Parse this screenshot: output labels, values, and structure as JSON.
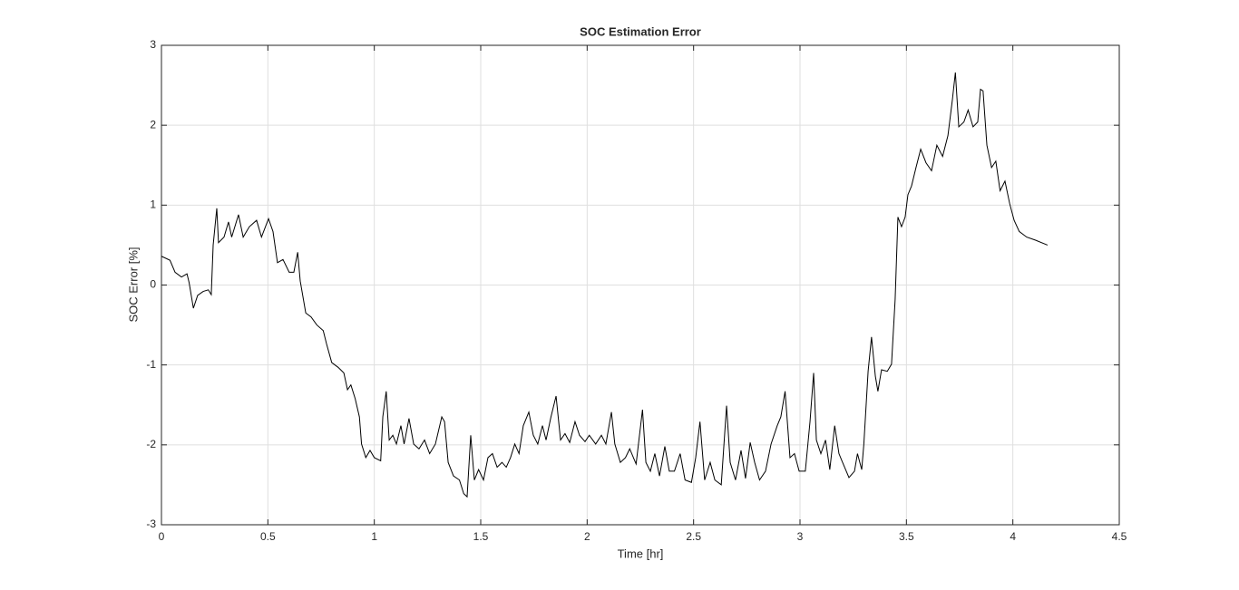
{
  "chart_data": {
    "type": "line",
    "title": "SOC Estimation Error",
    "x_label": "Time [hr]",
    "y_label": "SOC Error [%]",
    "xlim": [
      0,
      4.5
    ],
    "xticks": [
      0,
      0.5,
      1,
      1.5,
      2,
      2.5,
      3,
      3.5,
      4,
      4.5
    ],
    "ylim": [
      -3,
      3
    ],
    "yticks": [
      -3,
      -2,
      -1,
      0,
      1,
      2,
      3
    ],
    "grid": true,
    "series": [
      {
        "color": "#000000",
        "x": [
          0,
          0.04,
          0.064,
          0.094,
          0.12,
          0.13,
          0.15,
          0.17,
          0.196,
          0.22,
          0.234,
          0.243,
          0.26,
          0.268,
          0.294,
          0.315,
          0.33,
          0.362,
          0.384,
          0.413,
          0.447,
          0.47,
          0.503,
          0.524,
          0.545,
          0.571,
          0.6,
          0.622,
          0.64,
          0.652,
          0.678,
          0.703,
          0.73,
          0.76,
          0.776,
          0.8,
          0.83,
          0.857,
          0.874,
          0.89,
          0.91,
          0.93,
          0.94,
          0.96,
          0.98,
          1.0,
          1.03,
          1.04,
          1.056,
          1.07,
          1.087,
          1.104,
          1.125,
          1.14,
          1.163,
          1.185,
          1.21,
          1.236,
          1.26,
          1.287,
          1.317,
          1.33,
          1.347,
          1.372,
          1.4,
          1.42,
          1.436,
          1.453,
          1.47,
          1.49,
          1.513,
          1.534,
          1.555,
          1.577,
          1.6,
          1.62,
          1.64,
          1.66,
          1.68,
          1.7,
          1.726,
          1.747,
          1.768,
          1.79,
          1.807,
          1.83,
          1.854,
          1.875,
          1.896,
          1.918,
          1.943,
          1.964,
          1.99,
          2.01,
          2.04,
          2.067,
          2.088,
          2.114,
          2.13,
          2.156,
          2.18,
          2.2,
          2.23,
          2.26,
          2.276,
          2.297,
          2.318,
          2.34,
          2.365,
          2.386,
          2.41,
          2.437,
          2.46,
          2.49,
          2.51,
          2.53,
          2.552,
          2.578,
          2.6,
          2.63,
          2.655,
          2.672,
          2.697,
          2.723,
          2.744,
          2.766,
          2.787,
          2.81,
          2.838,
          2.864,
          2.893,
          2.91,
          2.93,
          2.953,
          2.974,
          2.996,
          3.025,
          3.047,
          3.064,
          3.077,
          3.098,
          3.12,
          3.14,
          3.163,
          3.183,
          3.2,
          3.23,
          3.256,
          3.27,
          3.29,
          3.3,
          3.32,
          3.336,
          3.354,
          3.366,
          3.383,
          3.41,
          3.43,
          3.447,
          3.46,
          3.477,
          3.494,
          3.507,
          3.524,
          3.545,
          3.567,
          3.592,
          3.618,
          3.643,
          3.67,
          3.695,
          3.716,
          3.73,
          3.746,
          3.77,
          3.79,
          3.813,
          3.835,
          3.848,
          3.86,
          3.878,
          3.9,
          3.92,
          3.94,
          3.963,
          3.985,
          4.006,
          4.03,
          4.065,
          4.108,
          4.163
        ],
        "values": [
          0.36,
          0.31,
          0.16,
          0.1,
          0.14,
          0.03,
          -0.29,
          -0.13,
          -0.08,
          -0.06,
          -0.12,
          0.5,
          0.96,
          0.53,
          0.6,
          0.79,
          0.6,
          0.88,
          0.6,
          0.73,
          0.81,
          0.6,
          0.83,
          0.67,
          0.28,
          0.32,
          0.16,
          0.16,
          0.41,
          0.05,
          -0.35,
          -0.4,
          -0.5,
          -0.57,
          -0.74,
          -0.97,
          -1.03,
          -1.1,
          -1.31,
          -1.25,
          -1.42,
          -1.65,
          -1.99,
          -2.16,
          -2.07,
          -2.16,
          -2.2,
          -1.65,
          -1.33,
          -1.94,
          -1.88,
          -1.99,
          -1.76,
          -1.99,
          -1.67,
          -1.99,
          -2.05,
          -1.94,
          -2.11,
          -1.99,
          -1.65,
          -1.71,
          -2.22,
          -2.39,
          -2.44,
          -2.61,
          -2.65,
          -1.88,
          -2.44,
          -2.31,
          -2.44,
          -2.16,
          -2.11,
          -2.28,
          -2.22,
          -2.28,
          -2.16,
          -1.99,
          -2.11,
          -1.76,
          -1.59,
          -1.88,
          -1.99,
          -1.76,
          -1.94,
          -1.65,
          -1.39,
          -1.94,
          -1.86,
          -1.97,
          -1.71,
          -1.88,
          -1.96,
          -1.88,
          -1.99,
          -1.88,
          -1.99,
          -1.59,
          -1.99,
          -2.22,
          -2.16,
          -2.05,
          -2.24,
          -1.56,
          -2.22,
          -2.33,
          -2.11,
          -2.39,
          -2.02,
          -2.33,
          -2.33,
          -2.11,
          -2.44,
          -2.47,
          -2.16,
          -1.71,
          -2.44,
          -2.22,
          -2.44,
          -2.5,
          -1.51,
          -2.22,
          -2.44,
          -2.07,
          -2.42,
          -1.97,
          -2.22,
          -2.44,
          -2.33,
          -1.99,
          -1.76,
          -1.65,
          -1.33,
          -2.16,
          -2.11,
          -2.33,
          -2.33,
          -1.71,
          -1.1,
          -1.94,
          -2.11,
          -1.94,
          -2.31,
          -1.76,
          -2.11,
          -2.22,
          -2.41,
          -2.33,
          -2.11,
          -2.31,
          -1.99,
          -1.08,
          -0.65,
          -1.14,
          -1.33,
          -1.06,
          -1.08,
          -0.99,
          -0.18,
          0.85,
          0.73,
          0.85,
          1.13,
          1.24,
          1.47,
          1.7,
          1.53,
          1.43,
          1.75,
          1.61,
          1.87,
          2.32,
          2.66,
          1.98,
          2.04,
          2.19,
          1.98,
          2.04,
          2.45,
          2.43,
          1.75,
          1.47,
          1.55,
          1.18,
          1.3,
          1.02,
          0.81,
          0.67,
          0.6,
          0.56,
          0.5
        ]
      }
    ]
  }
}
